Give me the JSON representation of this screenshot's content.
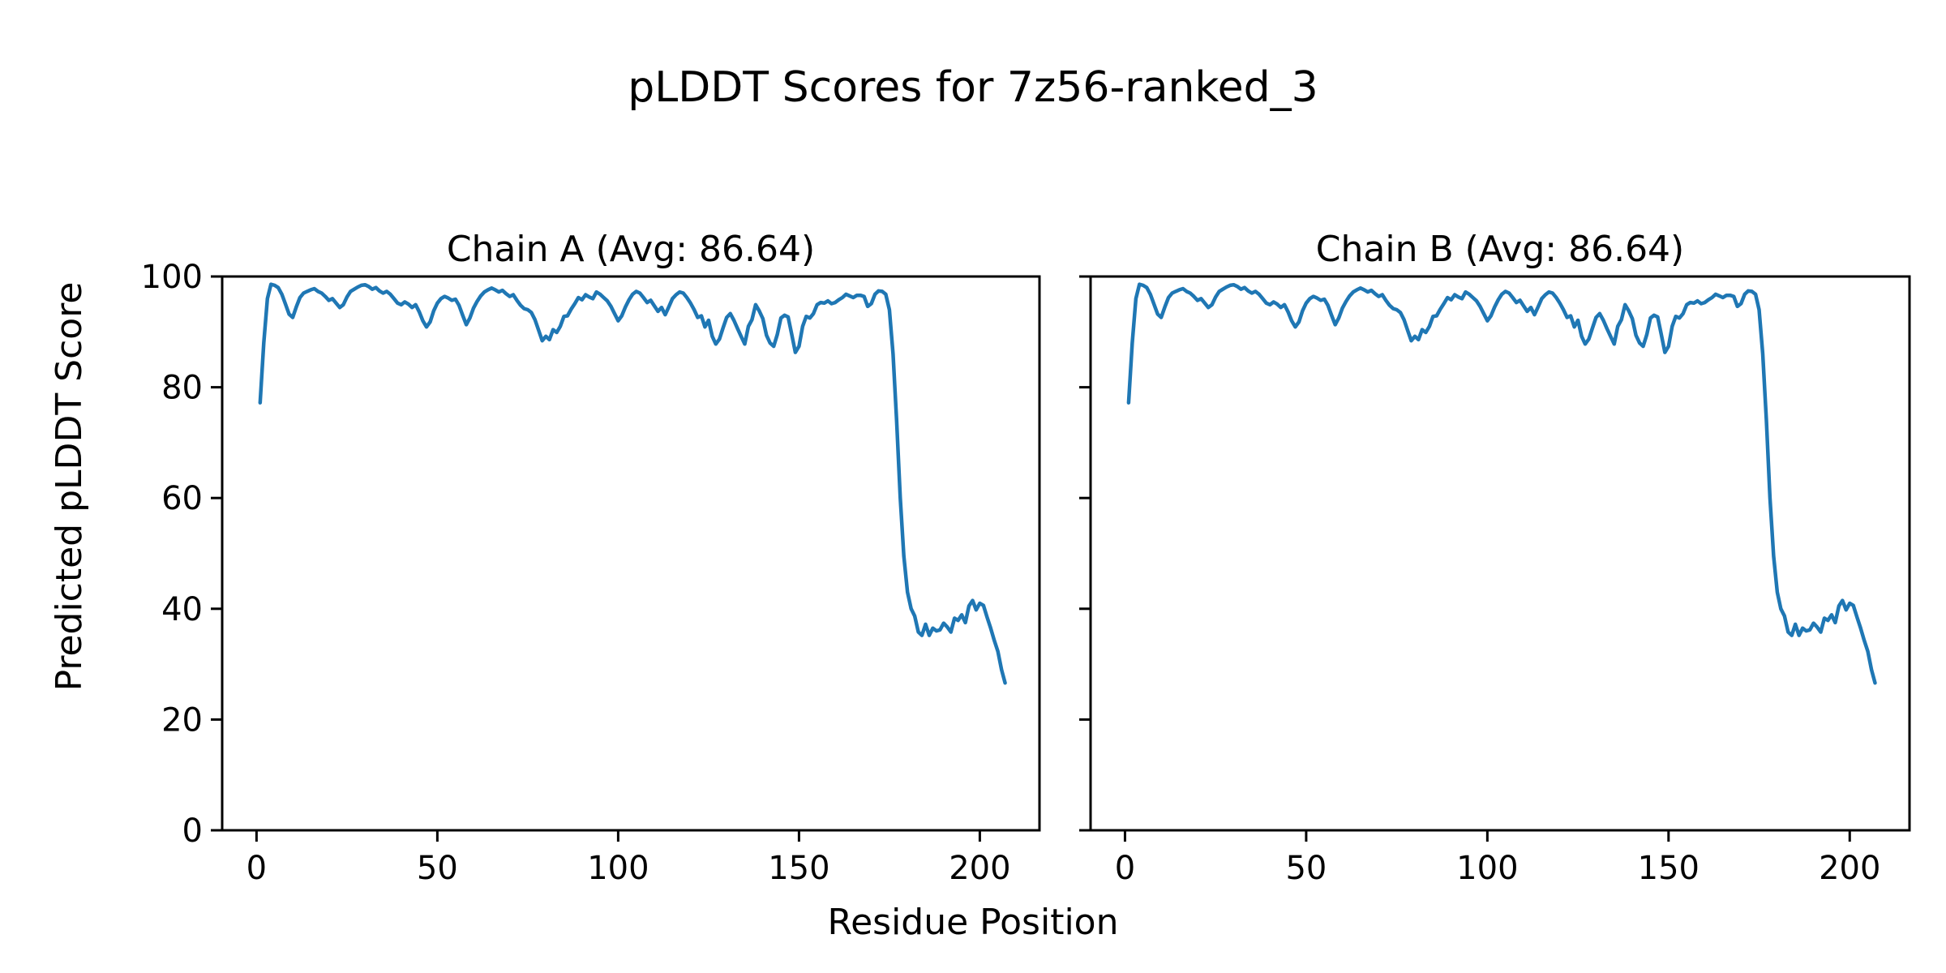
{
  "figure": {
    "background": "#ffffff",
    "title": "pLDDT Scores for 7z56-ranked_3"
  },
  "axes": {
    "xlabel": "Residue Position",
    "ylabel": "Predicted pLDDT Score"
  },
  "colors": {
    "line": "#1f77b4",
    "axis": "#000000",
    "text": "#000000"
  },
  "chart_data": {
    "type": "line",
    "title": "pLDDT Scores for 7z56-ranked_3",
    "xlabel": "Residue Position",
    "ylabel": "Predicted pLDDT Score",
    "x_ticks": [
      0,
      50,
      100,
      150,
      200
    ],
    "y_ticks": [
      0,
      20,
      40,
      60,
      80,
      100
    ],
    "xlim": [
      -9.5,
      216.5
    ],
    "ylim": [
      0,
      100
    ],
    "x_start": 1,
    "legend": "none",
    "grid": false,
    "subplots": [
      {
        "title": "Chain A (Avg: 86.64)",
        "chain": "A",
        "avg": 86.64
      },
      {
        "title": "Chain B (Avg: 86.64)",
        "chain": "B",
        "avg": 86.64
      }
    ],
    "series_note": "pLDDT per residue; identical curve shown for Chain A and Chain B",
    "values": [
      77.2,
      88.0,
      96.0,
      98.6,
      98.4,
      98.0,
      96.8,
      95.0,
      93.2,
      92.6,
      94.5,
      96.2,
      97.0,
      97.3,
      97.6,
      97.8,
      97.3,
      97.0,
      96.4,
      95.7,
      96.0,
      95.2,
      94.4,
      94.9,
      96.3,
      97.3,
      97.7,
      98.1,
      98.4,
      98.5,
      98.2,
      97.7,
      98.0,
      97.4,
      97.0,
      97.3,
      96.8,
      96.0,
      95.2,
      94.9,
      95.4,
      95.0,
      94.4,
      94.9,
      93.6,
      92.0,
      90.9,
      91.8,
      93.8,
      95.2,
      96.0,
      96.4,
      96.1,
      95.7,
      95.9,
      94.8,
      93.0,
      91.3,
      92.5,
      94.3,
      95.5,
      96.5,
      97.2,
      97.6,
      97.9,
      97.6,
      97.2,
      97.5,
      96.9,
      96.4,
      96.7,
      95.7,
      94.8,
      94.2,
      94.0,
      93.5,
      92.2,
      90.3,
      88.4,
      89.2,
      88.6,
      90.4,
      89.9,
      91.0,
      92.8,
      92.9,
      94.1,
      95.1,
      96.2,
      95.8,
      96.7,
      96.3,
      96.0,
      97.2,
      96.8,
      96.2,
      95.6,
      94.6,
      93.3,
      92.0,
      92.9,
      94.5,
      95.8,
      96.8,
      97.3,
      97.0,
      96.2,
      95.3,
      95.7,
      94.7,
      93.7,
      94.4,
      93.1,
      94.5,
      96.0,
      96.7,
      97.2,
      97.0,
      96.2,
      95.2,
      94.0,
      92.6,
      92.9,
      90.9,
      92.1,
      89.2,
      87.8,
      88.7,
      90.7,
      92.6,
      93.3,
      92.1,
      90.6,
      89.2,
      87.8,
      91.0,
      92.2,
      94.9,
      93.8,
      92.4,
      89.4,
      88.0,
      87.4,
      89.5,
      92.5,
      93.0,
      92.7,
      89.5,
      86.3,
      87.4,
      91.0,
      92.8,
      92.5,
      93.3,
      94.9,
      95.3,
      95.2,
      95.6,
      95.1,
      95.3,
      95.8,
      96.2,
      96.8,
      96.5,
      96.2,
      96.6,
      96.6,
      96.4,
      94.6,
      95.1,
      96.8,
      97.4,
      97.3,
      96.8,
      94.0,
      86.0,
      74.0,
      60.0,
      49.5,
      43.0,
      40.0,
      38.7,
      35.8,
      35.2,
      37.2,
      35.2,
      36.5,
      36.0,
      36.2,
      37.4,
      36.7,
      35.8,
      38.3,
      37.9,
      38.9,
      37.5,
      40.5,
      41.5,
      39.8,
      41.0,
      40.6,
      38.5,
      36.5,
      34.3,
      32.3,
      29.0,
      26.6
    ]
  }
}
